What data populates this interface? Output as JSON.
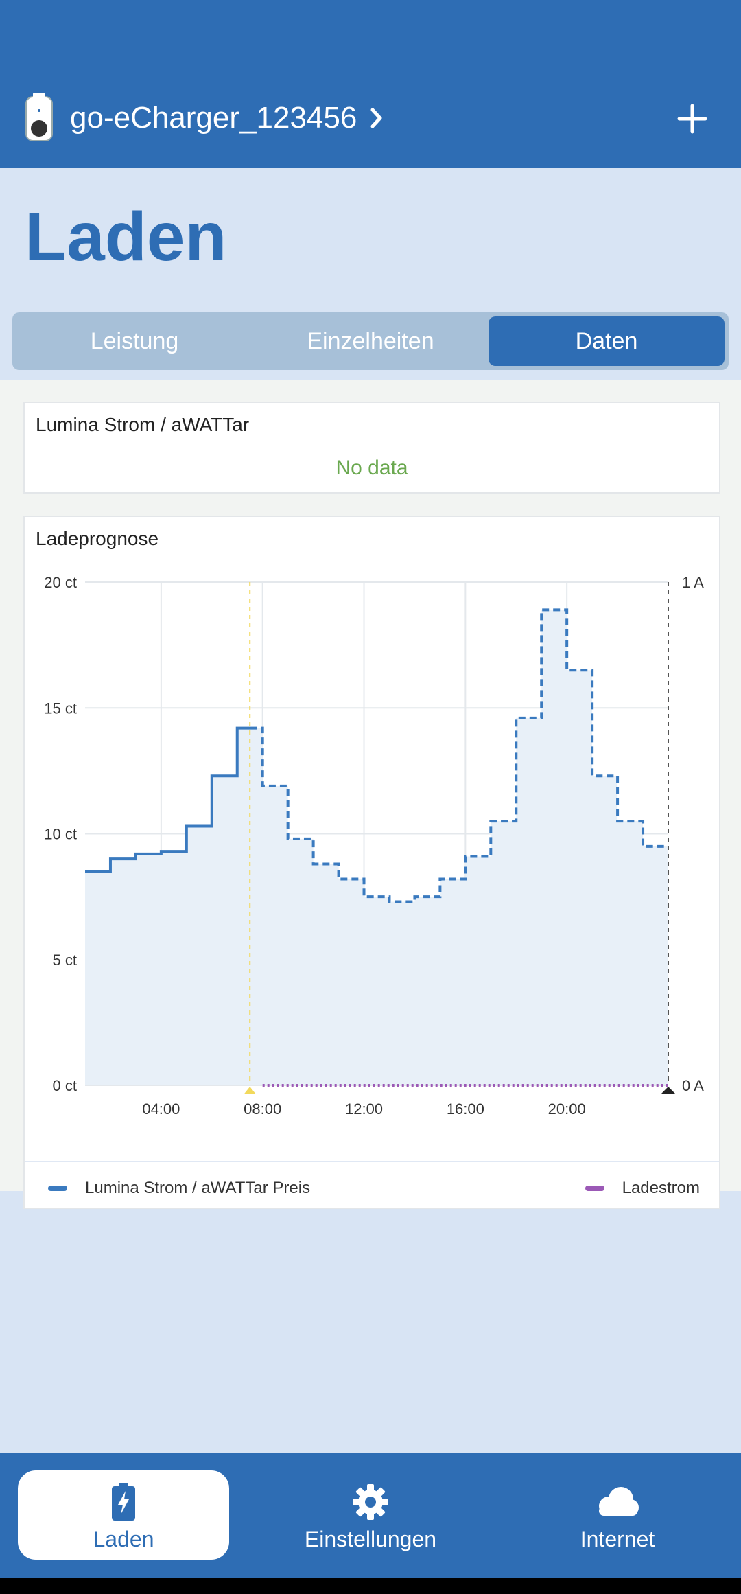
{
  "header": {
    "device_name": "go-eCharger_123456",
    "device_icon": "charger-device-icon",
    "add_icon": "plus-icon"
  },
  "page": {
    "title": "Laden"
  },
  "tabs": [
    {
      "label": "Leistung",
      "active": false
    },
    {
      "label": "Einzelheiten",
      "active": false
    },
    {
      "label": "Daten",
      "active": true
    }
  ],
  "price_card": {
    "title": "Lumina Strom / aWATTar",
    "status": "No data"
  },
  "forecast_card": {
    "title": "Ladeprognose"
  },
  "chart_data": {
    "type": "line",
    "title": "",
    "x_tick_labels": [
      "04:00",
      "08:00",
      "12:00",
      "16:00",
      "20:00"
    ],
    "y_tick_labels": [
      "0 ct",
      "5 ct",
      "10 ct",
      "15 ct",
      "20 ct"
    ],
    "y2_tick_labels": [
      "0 A",
      "1 A"
    ],
    "ylim": [
      0,
      20
    ],
    "y2lim": [
      0,
      1
    ],
    "grid": true,
    "legend_placement": "bottom",
    "current_time_marker": "07:30",
    "series": [
      {
        "name": "Lumina Strom / aWATTar Preis",
        "color": "#3a7abf",
        "style": "step",
        "solid_until": "07:30",
        "x": [
          "01:00",
          "02:00",
          "03:00",
          "04:00",
          "05:00",
          "06:00",
          "07:00",
          "08:00",
          "09:00",
          "10:00",
          "11:00",
          "12:00",
          "13:00",
          "14:00",
          "15:00",
          "16:00",
          "17:00",
          "18:00",
          "19:00",
          "20:00",
          "21:00",
          "22:00",
          "23:00"
        ],
        "values": [
          8.5,
          9.0,
          9.2,
          9.3,
          10.3,
          12.3,
          14.2,
          11.9,
          9.8,
          8.8,
          8.2,
          7.5,
          7.3,
          7.5,
          8.2,
          9.1,
          10.5,
          14.6,
          18.9,
          16.5,
          12.3,
          10.5,
          9.5
        ]
      },
      {
        "name": "Ladestrom",
        "color": "#9b59b6",
        "style": "dotted",
        "x": [
          "08:00",
          "24:00"
        ],
        "values": [
          0,
          0
        ]
      }
    ]
  },
  "legend": {
    "price_label": "Lumina Strom / aWATTar Preis",
    "current_label": "Ladestrom",
    "price_color": "#3a7abf",
    "current_color": "#9b59b6"
  },
  "bottom_nav": [
    {
      "label": "Laden",
      "icon": "battery-charging-icon",
      "active": true
    },
    {
      "label": "Einstellungen",
      "icon": "gear-icon",
      "active": false
    },
    {
      "label": "Internet",
      "icon": "cloud-icon",
      "active": false
    }
  ]
}
